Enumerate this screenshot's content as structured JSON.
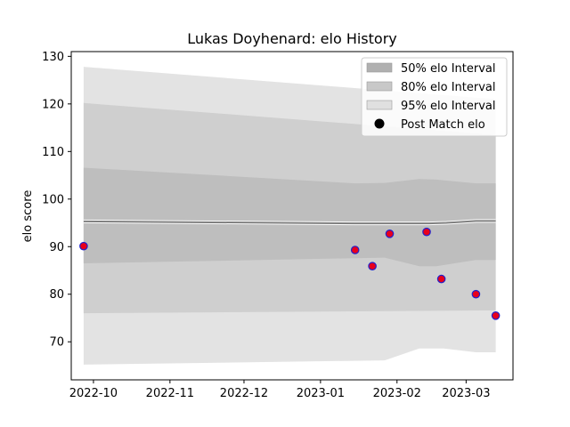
{
  "chart_data": {
    "type": "scatter",
    "title": "Lukas Doyhenard: elo History",
    "xlabel": "",
    "ylabel": "elo score",
    "xlim": [
      "2022-09-22",
      "2023-03-20"
    ],
    "ylim": [
      62,
      131
    ],
    "x_ticks": [
      "2022-10-01",
      "2022-11-01",
      "2022-12-01",
      "2023-01-01",
      "2023-02-01",
      "2023-03-01"
    ],
    "x_tick_labels": [
      "2022-10",
      "2022-11",
      "2022-12",
      "2023-01",
      "2023-02",
      "2023-03"
    ],
    "y_ticks": [
      70,
      80,
      90,
      100,
      110,
      120,
      130
    ],
    "y_tick_labels": [
      "70",
      "80",
      "90",
      "100",
      "110",
      "120",
      "130"
    ],
    "grid": false,
    "legend_position": "top-right",
    "legend": [
      {
        "label": "50% elo Interval",
        "kind": "patch",
        "color": "#b0b0b0"
      },
      {
        "label": "80% elo Interval",
        "kind": "patch",
        "color": "#c8c8c8"
      },
      {
        "label": "95% elo Interval",
        "kind": "patch",
        "color": "#e0e0e0"
      },
      {
        "label": "Post Match elo",
        "kind": "marker",
        "color": "#000000"
      }
    ],
    "mean_line": {
      "color": "#808080",
      "points": [
        [
          "2022-09-27",
          95.3
        ],
        [
          "2023-01-15",
          94.9
        ],
        [
          "2023-02-14",
          94.9
        ],
        [
          "2023-02-21",
          95.0
        ],
        [
          "2023-03-05",
          95.4
        ],
        [
          "2023-03-13",
          95.4
        ]
      ]
    },
    "intervals": [
      {
        "name": "95% elo Interval",
        "color": "#e3e3e3",
        "upper": [
          [
            "2022-09-27",
            127.8
          ],
          [
            "2023-03-13",
            121.0
          ]
        ],
        "lower": [
          [
            "2022-09-27",
            65.2
          ],
          [
            "2023-01-27",
            66.1
          ],
          [
            "2023-02-10",
            68.6
          ],
          [
            "2023-02-20",
            68.6
          ],
          [
            "2023-03-05",
            67.8
          ],
          [
            "2023-03-13",
            67.8
          ]
        ]
      },
      {
        "name": "80% elo Interval",
        "color": "#cfcfcf",
        "upper": [
          [
            "2022-09-27",
            120.2
          ],
          [
            "2023-03-13",
            113.5
          ]
        ],
        "lower": [
          [
            "2022-09-27",
            76.0
          ],
          [
            "2023-03-13",
            76.6
          ]
        ]
      },
      {
        "name": "50% elo Interval",
        "color": "#bebebe",
        "upper": [
          [
            "2022-09-27",
            106.6
          ],
          [
            "2023-01-15",
            103.3
          ],
          [
            "2023-01-27",
            103.4
          ],
          [
            "2023-02-10",
            104.2
          ],
          [
            "2023-02-17",
            104.1
          ],
          [
            "2023-03-05",
            103.3
          ],
          [
            "2023-03-13",
            103.3
          ]
        ],
        "lower": [
          [
            "2022-09-27",
            86.5
          ],
          [
            "2023-01-27",
            87.7
          ],
          [
            "2023-02-10",
            85.9
          ],
          [
            "2023-02-17",
            85.9
          ],
          [
            "2023-03-05",
            87.2
          ],
          [
            "2023-03-13",
            87.2
          ]
        ]
      }
    ],
    "series": [
      {
        "name": "Post Match elo",
        "marker_face": "#e8001c",
        "marker_edge": "#2222cc",
        "points": [
          [
            "2022-09-27",
            90.1
          ],
          [
            "2023-01-15",
            89.3
          ],
          [
            "2023-01-22",
            85.9
          ],
          [
            "2023-01-29",
            92.7
          ],
          [
            "2023-02-13",
            93.1
          ],
          [
            "2023-02-19",
            83.2
          ],
          [
            "2023-03-05",
            80.0
          ],
          [
            "2023-03-13",
            75.5
          ]
        ]
      }
    ]
  }
}
